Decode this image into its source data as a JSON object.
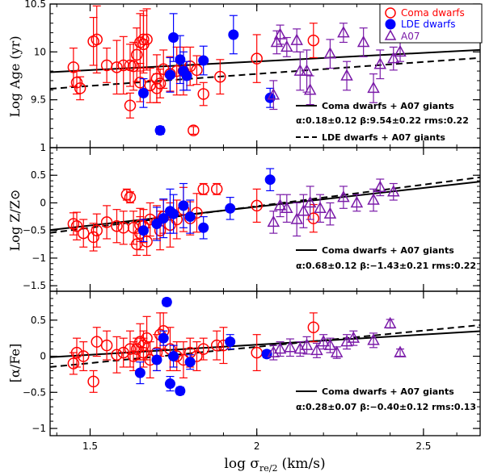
{
  "chart_data": [
    {
      "type": "scatter",
      "panel": "age",
      "ylabel": "Log Age (yr)",
      "ylim": [
        9.0,
        10.5
      ],
      "yticks": [
        9.5,
        10,
        10.5
      ],
      "yminor": 0.1,
      "xlim": [
        1.38,
        2.67
      ],
      "legend": {
        "position": "top-right",
        "entries": [
          {
            "label": "Coma dwarfs",
            "marker": "open-circle",
            "color": "#ff0000"
          },
          {
            "label": "LDE dwarfs",
            "marker": "filled-circle",
            "color": "#0000ff"
          },
          {
            "label": "A07",
            "marker": "open-triangle",
            "color": "#7a1aa8"
          }
        ]
      },
      "fits": [
        {
          "label": "Coma dwarfs + A07 giants",
          "style": "solid",
          "alpha": 0.18,
          "beta": 9.54
        },
        {
          "label": "LDE dwarfs + A07 giants",
          "style": "dashed",
          "alpha": 0.25,
          "beta": 9.27
        }
      ],
      "fit_note": "α:0.18±0.12 β:9.54±0.22 rms:0.22",
      "series": [
        {
          "name": "Coma dwarfs",
          "x": [
            1.45,
            1.46,
            1.47,
            1.51,
            1.52,
            1.55,
            1.58,
            1.6,
            1.62,
            1.63,
            1.65,
            1.66,
            1.67,
            1.68,
            1.7,
            1.71,
            1.72,
            1.74,
            1.76,
            1.78,
            1.8,
            1.82,
            1.84,
            1.89,
            2.0,
            2.17,
            1.62,
            1.66,
            1.64,
            1.65,
            1.7,
            1.81
          ],
          "y": [
            9.84,
            9.68,
            9.62,
            10.11,
            10.13,
            9.86,
            9.84,
            9.86,
            9.44,
            9.85,
            10.1,
            10.08,
            10.13,
            9.65,
            9.62,
            9.67,
            9.82,
            9.77,
            9.8,
            9.8,
            9.85,
            9.81,
            9.56,
            9.74,
            9.93,
            10.12,
            9.86,
            10.13,
            9.97,
            9.68,
            9.72,
            9.18
          ],
          "yerr": [
            0.2,
            0.12,
            0.12,
            0.25,
            0.35,
            0.18,
            0.28,
            0.3,
            0.13,
            0.25,
            0.3,
            0.3,
            0.32,
            0.18,
            0.15,
            0.15,
            0.2,
            0.18,
            0.25,
            0.25,
            0.2,
            0.15,
            0.12,
            0.18,
            0.25,
            0.18,
            0.22,
            0.3,
            0.28,
            0.2,
            0.25,
            0.04
          ]
        },
        {
          "name": "LDE dwarfs",
          "x": [
            1.66,
            1.71,
            1.74,
            1.75,
            1.77,
            1.78,
            1.79,
            1.84,
            1.93,
            2.04
          ],
          "y": [
            9.57,
            9.18,
            9.76,
            10.15,
            9.92,
            9.8,
            9.75,
            9.91,
            10.18,
            9.52
          ],
          "yerr": [
            0.15,
            0.04,
            0.18,
            0.25,
            0.25,
            0.2,
            0.15,
            0.15,
            0.2,
            0.1
          ]
        },
        {
          "name": "A07",
          "x": [
            2.07,
            2.09,
            2.13,
            2.15,
            2.16,
            2.22,
            2.26,
            2.27,
            2.32,
            2.35,
            2.37,
            2.41,
            2.43,
            2.05,
            2.06,
            2.12
          ],
          "y": [
            10.18,
            10.05,
            9.8,
            9.8,
            9.6,
            9.98,
            10.2,
            9.75,
            10.1,
            9.62,
            9.87,
            9.93,
            10.0,
            9.55,
            10.1,
            10.12
          ],
          "yerr": [
            0.1,
            0.1,
            0.2,
            0.22,
            0.15,
            0.15,
            0.1,
            0.15,
            0.15,
            0.15,
            0.15,
            0.12,
            0.1,
            0.15,
            0.12,
            0.12
          ]
        }
      ]
    },
    {
      "type": "scatter",
      "panel": "metallicity",
      "ylabel": "Log Z/Z⊙",
      "ylim": [
        -1.6,
        1.0
      ],
      "yticks": [
        -1.5,
        -1,
        -0.5,
        0,
        0.5,
        1
      ],
      "yminor": 0.1,
      "xlim": [
        1.38,
        2.67
      ],
      "fits": [
        {
          "label": "Coma dwarfs + A07 giants",
          "style": "solid",
          "alpha": 0.68,
          "beta": -1.43
        },
        {
          "label": "",
          "style": "dashed",
          "alpha": 0.78,
          "beta": -1.62
        }
      ],
      "fit_note": "α:0.68±0.12 β:−1.43±0.21 rms:0.22",
      "series": [
        {
          "name": "Coma dwarfs",
          "x": [
            1.45,
            1.46,
            1.48,
            1.51,
            1.52,
            1.55,
            1.58,
            1.6,
            1.61,
            1.62,
            1.63,
            1.65,
            1.66,
            1.67,
            1.68,
            1.7,
            1.71,
            1.72,
            1.74,
            1.76,
            1.78,
            1.8,
            1.82,
            1.84,
            1.88,
            2.0,
            2.17,
            1.64,
            1.65
          ],
          "y": [
            -0.38,
            -0.42,
            -0.55,
            -0.62,
            -0.5,
            -0.35,
            -0.42,
            -0.45,
            0.15,
            0.1,
            -0.45,
            -0.55,
            -0.42,
            -0.7,
            -0.3,
            -0.35,
            -0.5,
            -0.25,
            -0.4,
            -0.3,
            -0.12,
            -0.28,
            -0.18,
            0.25,
            0.25,
            -0.05,
            -0.28,
            -0.75,
            -0.4
          ],
          "yerr": [
            0.2,
            0.25,
            0.25,
            0.25,
            0.3,
            0.3,
            0.3,
            0.3,
            0.1,
            0.1,
            0.3,
            0.3,
            0.3,
            0.25,
            0.3,
            0.3,
            0.35,
            0.3,
            0.4,
            0.35,
            0.4,
            0.3,
            0.35,
            0.1,
            0.1,
            0.3,
            0.25,
            0.2,
            0.3
          ]
        },
        {
          "name": "LDE dwarfs",
          "x": [
            1.66,
            1.7,
            1.72,
            1.74,
            1.75,
            1.78,
            1.8,
            1.84,
            1.92,
            2.04
          ],
          "y": [
            -0.5,
            -0.38,
            -0.28,
            -0.15,
            -0.2,
            -0.05,
            -0.25,
            -0.45,
            -0.1,
            0.42
          ],
          "yerr": [
            0.2,
            0.3,
            0.35,
            0.4,
            0.35,
            0.4,
            0.3,
            0.2,
            0.2,
            0.2
          ]
        },
        {
          "name": "A07",
          "x": [
            2.05,
            2.07,
            2.09,
            2.12,
            2.14,
            2.16,
            2.19,
            2.22,
            2.26,
            2.3,
            2.35,
            2.37,
            2.41
          ],
          "y": [
            -0.35,
            -0.05,
            -0.1,
            -0.3,
            -0.15,
            0.0,
            -0.1,
            -0.2,
            0.1,
            0.0,
            0.05,
            0.28,
            0.2
          ],
          "yerr": [
            0.2,
            0.2,
            0.25,
            0.3,
            0.3,
            0.3,
            0.25,
            0.2,
            0.2,
            0.15,
            0.2,
            0.15,
            0.15
          ]
        }
      ]
    },
    {
      "type": "scatter",
      "panel": "alpha",
      "ylabel": "[α/Fe]",
      "ylim": [
        -1.1,
        0.9
      ],
      "yticks": [
        -1,
        -0.5,
        0,
        0.5
      ],
      "yminor": 0.1,
      "xlim": [
        1.38,
        2.67
      ],
      "xlabel": "log σ",
      "xlabel_sub": "re/2",
      "xlabel_unit": "(km/s)",
      "xticks": [
        1.5,
        2,
        2.5
      ],
      "xminor": 0.1,
      "fits": [
        {
          "label": "Coma dwarfs + A07 giants",
          "style": "solid",
          "alpha": 0.28,
          "beta": -0.4
        },
        {
          "label": "",
          "style": "dashed",
          "alpha": 0.45,
          "beta": -0.77
        }
      ],
      "fit_note": "α:0.28±0.07 β:−0.40±0.12 rms:0.13",
      "series": [
        {
          "name": "Coma dwarfs",
          "x": [
            1.45,
            1.46,
            1.48,
            1.51,
            1.52,
            1.55,
            1.58,
            1.6,
            1.62,
            1.63,
            1.65,
            1.66,
            1.67,
            1.68,
            1.7,
            1.71,
            1.72,
            1.74,
            1.76,
            1.78,
            1.8,
            1.82,
            1.84,
            1.88,
            1.9,
            2.0,
            2.17,
            1.64,
            1.66
          ],
          "y": [
            -0.1,
            0.05,
            0.0,
            -0.35,
            0.2,
            0.15,
            0.02,
            0.05,
            0.1,
            0.0,
            0.2,
            0.05,
            0.25,
            -0.05,
            0.05,
            0.3,
            0.35,
            0.1,
            0.0,
            -0.05,
            0.05,
            0.0,
            0.1,
            0.15,
            0.15,
            0.05,
            0.4,
            0.1,
            0.15
          ],
          "yerr": [
            0.15,
            0.2,
            0.2,
            0.15,
            0.2,
            0.2,
            0.25,
            0.2,
            0.25,
            0.2,
            0.25,
            0.2,
            0.3,
            0.25,
            0.25,
            0.3,
            0.25,
            0.3,
            0.2,
            0.25,
            0.2,
            0.2,
            0.15,
            0.2,
            0.25,
            0.25,
            0.2,
            0.15,
            0.2
          ]
        },
        {
          "name": "LDE dwarfs",
          "x": [
            1.65,
            1.7,
            1.72,
            1.73,
            1.74,
            1.75,
            1.77,
            1.8,
            1.92,
            2.03
          ],
          "y": [
            -0.23,
            -0.05,
            0.25,
            0.75,
            -0.38,
            0.0,
            -0.48,
            -0.08,
            0.2,
            0.03
          ],
          "yerr": [
            0.15,
            0.15,
            0.1,
            0.05,
            0.1,
            0.15,
            0.05,
            0.1,
            0.1,
            0.05
          ]
        },
        {
          "name": "A07",
          "x": [
            2.05,
            2.07,
            2.1,
            2.13,
            2.15,
            2.18,
            2.2,
            2.22,
            2.24,
            2.27,
            2.29,
            2.35,
            2.4,
            2.43
          ],
          "y": [
            0.05,
            0.1,
            0.12,
            0.1,
            0.15,
            0.08,
            0.2,
            0.15,
            0.05,
            0.2,
            0.25,
            0.22,
            0.45,
            0.05
          ],
          "yerr": [
            0.1,
            0.1,
            0.12,
            0.1,
            0.12,
            0.1,
            0.1,
            0.1,
            0.08,
            0.1,
            0.1,
            0.1,
            0.06,
            0.05
          ]
        }
      ]
    }
  ]
}
